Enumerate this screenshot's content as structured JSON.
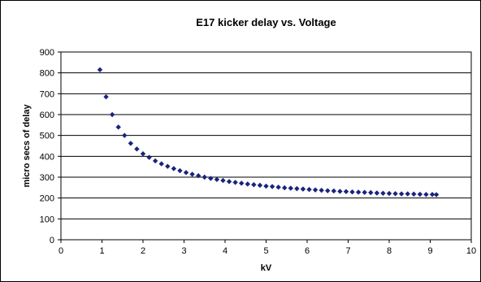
{
  "chart_data": {
    "type": "scatter",
    "title": "E17 kicker delay vs. Voltage",
    "xlabel": "kV",
    "ylabel": "micro secs of delay",
    "xlim": [
      0,
      10
    ],
    "ylim": [
      0,
      900
    ],
    "x_ticks": [
      "0",
      "1",
      "2",
      "3",
      "4",
      "5",
      "6",
      "7",
      "8",
      "9",
      "10"
    ],
    "y_ticks": [
      "0",
      "100",
      "200",
      "300",
      "400",
      "500",
      "600",
      "700",
      "800",
      "900"
    ],
    "grid": "horizontal major gridlines",
    "legend": "none",
    "marker": "diamond",
    "series": [
      {
        "color": "#1a237e",
        "x": [
          0.95,
          1.1,
          1.25,
          1.4,
          1.55,
          1.7,
          1.85,
          2.0,
          2.15,
          2.3,
          2.45,
          2.6,
          2.75,
          2.9,
          3.05,
          3.2,
          3.35,
          3.5,
          3.65,
          3.8,
          3.95,
          4.1,
          4.25,
          4.4,
          4.55,
          4.7,
          4.85,
          5.0,
          5.15,
          5.3,
          5.45,
          5.6,
          5.75,
          5.9,
          6.05,
          6.2,
          6.35,
          6.5,
          6.65,
          6.8,
          6.95,
          7.1,
          7.25,
          7.4,
          7.55,
          7.7,
          7.85,
          8.0,
          8.15,
          8.3,
          8.45,
          8.6,
          8.75,
          8.9,
          9.05,
          9.15
        ],
        "y": [
          815,
          685,
          600,
          540,
          500,
          462,
          435,
          412,
          395,
          378,
          364,
          352,
          341,
          331,
          322,
          314,
          307,
          300,
          294,
          289,
          284,
          279,
          275,
          271,
          267,
          264,
          261,
          257,
          255,
          252,
          249,
          247,
          245,
          243,
          241,
          239,
          237,
          235,
          234,
          232,
          231,
          229,
          228,
          227,
          226,
          224,
          223,
          222,
          221,
          220,
          220,
          219,
          218,
          217,
          217,
          216
        ]
      }
    ]
  }
}
